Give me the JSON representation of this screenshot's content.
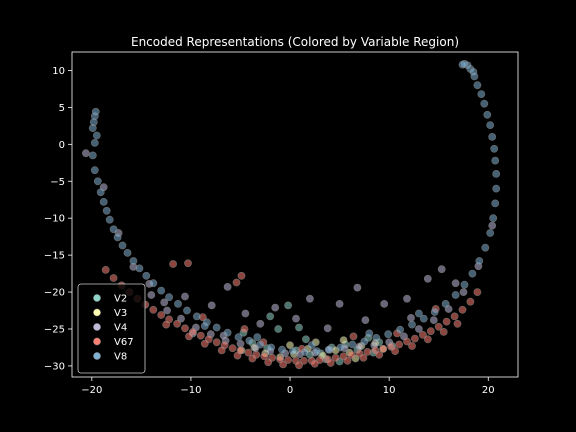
{
  "chart_data": {
    "type": "scatter",
    "title": "Encoded Representations (Colored by Variable Region)",
    "xlabel": "",
    "ylabel": "",
    "xlim": [
      -22,
      23
    ],
    "ylim": [
      -31.5,
      12.5
    ],
    "xticks": [
      -20,
      -10,
      0,
      10,
      20
    ],
    "yticks": [
      10,
      5,
      0,
      -5,
      -10,
      -15,
      -20,
      -25,
      -30
    ],
    "grid": false,
    "legend_position": "lower-left",
    "background": "#000000",
    "series": [
      {
        "name": "V2",
        "color": "#8dd3c7",
        "points": [
          [
            -2.3,
            -27.6
          ],
          [
            -1.2,
            -25.0
          ],
          [
            0.6,
            -27.9
          ],
          [
            2.0,
            -28.5
          ],
          [
            3.1,
            -28.3
          ],
          [
            4.2,
            -27.5
          ],
          [
            5.6,
            -27.1
          ],
          [
            6.8,
            -27.8
          ],
          [
            7.9,
            -26.2
          ],
          [
            9.0,
            -26.8
          ],
          [
            -0.2,
            -21.8
          ],
          [
            -2.0,
            -23.3
          ],
          [
            1.6,
            -26.4
          ],
          [
            3.6,
            -29.1
          ],
          [
            -3.8,
            -26.9
          ],
          [
            10.3,
            -27.3
          ],
          [
            0.9,
            -24.8
          ],
          [
            5.0,
            -29.4
          ],
          [
            -4.7,
            -25.5
          ],
          [
            8.4,
            -28.2
          ]
        ]
      },
      {
        "name": "V3",
        "color": "#ffffb3",
        "points": [
          [
            -2.5,
            -28.3
          ],
          [
            -1.0,
            -28.8
          ],
          [
            0.4,
            -28.4
          ],
          [
            1.8,
            -27.7
          ],
          [
            3.3,
            -28.6
          ],
          [
            4.6,
            -27.9
          ],
          [
            6.0,
            -28.2
          ],
          [
            7.2,
            -27.3
          ],
          [
            8.6,
            -26.9
          ],
          [
            -3.6,
            -27.5
          ],
          [
            2.6,
            -26.8
          ],
          [
            5.4,
            -26.5
          ],
          [
            9.4,
            -27.7
          ],
          [
            0.0,
            -27.2
          ],
          [
            -4.9,
            -27.9
          ],
          [
            6.6,
            -29.0
          ]
        ]
      },
      {
        "name": "V4",
        "color": "#bebada",
        "points": [
          [
            -20.6,
            -1.2
          ],
          [
            -18.8,
            -5.8
          ],
          [
            -17.3,
            -12.0
          ],
          [
            -15.8,
            -16.6
          ],
          [
            -14.0,
            -20.4
          ],
          [
            -12.4,
            -22.5
          ],
          [
            -11.0,
            -23.6
          ],
          [
            -9.5,
            -24.8
          ],
          [
            -8.0,
            -25.7
          ],
          [
            -6.5,
            -26.6
          ],
          [
            -5.0,
            -27.0
          ],
          [
            -3.5,
            -27.6
          ],
          [
            -2.0,
            -28.0
          ],
          [
            -0.5,
            -28.3
          ],
          [
            1.0,
            -28.4
          ],
          [
            2.5,
            -28.2
          ],
          [
            4.0,
            -27.8
          ],
          [
            5.5,
            -27.6
          ],
          [
            7.0,
            -27.4
          ],
          [
            8.5,
            -27.2
          ],
          [
            10.0,
            -26.8
          ],
          [
            11.5,
            -26.0
          ],
          [
            13.0,
            -25.0
          ],
          [
            14.5,
            -23.8
          ],
          [
            16.0,
            -22.3
          ],
          [
            17.5,
            -20.0
          ],
          [
            19.0,
            -16.5
          ],
          [
            20.4,
            -11.0
          ],
          [
            -6.3,
            -19.3
          ],
          [
            -7.9,
            -21.8
          ],
          [
            -12.7,
            -21.4
          ],
          [
            -4.5,
            -22.9
          ],
          [
            -10.6,
            -20.6
          ],
          [
            -1.5,
            -22.1
          ],
          [
            2.0,
            -20.9
          ],
          [
            5.0,
            -21.6
          ],
          [
            6.8,
            -19.4
          ],
          [
            9.5,
            -21.6
          ],
          [
            11.8,
            -20.9
          ],
          [
            13.9,
            -18.2
          ],
          [
            15.3,
            -16.9
          ],
          [
            16.7,
            -18.8
          ],
          [
            -9.8,
            -25.6
          ],
          [
            -6.7,
            -25.9
          ],
          [
            -3.0,
            -24.3
          ],
          [
            0.6,
            -23.6
          ],
          [
            3.8,
            -24.9
          ],
          [
            7.6,
            -23.8
          ],
          [
            12.2,
            -23.5
          ],
          [
            -14.2,
            -18.9
          ]
        ]
      },
      {
        "name": "V67",
        "color": "#fb8072",
        "points": [
          [
            -18.6,
            -17.0
          ],
          [
            -17.8,
            -18.1
          ],
          [
            -17.0,
            -19.1
          ],
          [
            -16.2,
            -20.0
          ],
          [
            -15.4,
            -20.9
          ],
          [
            -14.6,
            -21.7
          ],
          [
            -13.8,
            -22.4
          ],
          [
            -13.0,
            -23.1
          ],
          [
            -12.2,
            -23.7
          ],
          [
            -11.4,
            -24.3
          ],
          [
            -10.6,
            -24.9
          ],
          [
            -9.8,
            -25.4
          ],
          [
            -9.0,
            -25.9
          ],
          [
            -8.2,
            -26.4
          ],
          [
            -7.4,
            -26.8
          ],
          [
            -6.6,
            -27.2
          ],
          [
            -5.8,
            -27.6
          ],
          [
            -5.0,
            -27.9
          ],
          [
            -4.2,
            -28.2
          ],
          [
            -3.4,
            -28.5
          ],
          [
            -2.6,
            -28.7
          ],
          [
            -1.8,
            -28.9
          ],
          [
            -1.0,
            -29.1
          ],
          [
            -0.2,
            -29.2
          ],
          [
            0.6,
            -29.3
          ],
          [
            1.4,
            -29.3
          ],
          [
            2.2,
            -29.3
          ],
          [
            3.0,
            -29.2
          ],
          [
            3.8,
            -29.1
          ],
          [
            4.6,
            -28.9
          ],
          [
            5.4,
            -28.7
          ],
          [
            6.2,
            -28.5
          ],
          [
            7.0,
            -28.3
          ],
          [
            7.8,
            -28.1
          ],
          [
            8.6,
            -27.9
          ],
          [
            9.4,
            -27.7
          ],
          [
            10.2,
            -27.4
          ],
          [
            11.0,
            -27.1
          ],
          [
            11.8,
            -26.7
          ],
          [
            12.6,
            -26.3
          ],
          [
            13.4,
            -25.8
          ],
          [
            14.2,
            -25.3
          ],
          [
            15.0,
            -24.7
          ],
          [
            15.8,
            -24.0
          ],
          [
            16.6,
            -23.3
          ],
          [
            17.4,
            -22.4
          ],
          [
            18.2,
            -21.3
          ],
          [
            18.9,
            -20.0
          ],
          [
            -12.5,
            -24.4
          ],
          [
            -10.2,
            -26.0
          ],
          [
            -8.6,
            -27.0
          ],
          [
            -6.9,
            -27.9
          ],
          [
            -5.3,
            -28.6
          ],
          [
            -3.8,
            -29.0
          ],
          [
            -2.2,
            -29.5
          ],
          [
            -0.7,
            -29.8
          ],
          [
            0.9,
            -29.9
          ],
          [
            2.5,
            -29.7
          ],
          [
            4.1,
            -29.6
          ],
          [
            5.8,
            -29.3
          ],
          [
            7.4,
            -28.9
          ],
          [
            9.0,
            -28.5
          ],
          [
            10.6,
            -28.0
          ],
          [
            12.3,
            -27.3
          ],
          [
            13.9,
            -26.4
          ],
          [
            15.5,
            -25.4
          ],
          [
            16.9,
            -24.3
          ],
          [
            -11.8,
            -16.2
          ],
          [
            -10.3,
            -16.1
          ],
          [
            -4.9,
            -17.8
          ],
          [
            -5.4,
            -18.7
          ],
          [
            -4.6,
            -25.0
          ],
          [
            -8.8,
            -23.4
          ],
          [
            -2.7,
            -26.8
          ],
          [
            1.2,
            -27.7
          ],
          [
            6.4,
            -26.0
          ],
          [
            10.8,
            -25.6
          ],
          [
            14.7,
            -22.3
          ]
        ]
      },
      {
        "name": "V8",
        "color": "#80b1d3",
        "points": [
          [
            -19.9,
            2.2
          ],
          [
            -19.8,
            3.0
          ],
          [
            -19.7,
            3.8
          ],
          [
            -19.6,
            4.4
          ],
          [
            -19.5,
            1.2
          ],
          [
            -19.7,
            0.2
          ],
          [
            -19.9,
            -1.5
          ],
          [
            -19.7,
            -3.5
          ],
          [
            -19.4,
            -5.0
          ],
          [
            -19.1,
            -6.5
          ],
          [
            -18.8,
            -7.8
          ],
          [
            -18.5,
            -9.0
          ],
          [
            -18.2,
            -10.2
          ],
          [
            -17.8,
            -11.5
          ],
          [
            -17.4,
            -12.6
          ],
          [
            -16.9,
            -13.7
          ],
          [
            -16.4,
            -14.7
          ],
          [
            -15.8,
            -15.8
          ],
          [
            -15.2,
            -16.8
          ],
          [
            -14.5,
            -17.8
          ],
          [
            -13.8,
            -18.8
          ],
          [
            -13.0,
            -19.8
          ],
          [
            -12.2,
            -20.7
          ],
          [
            -11.3,
            -21.6
          ],
          [
            -10.4,
            -22.5
          ],
          [
            -9.4,
            -23.3
          ],
          [
            -8.4,
            -24.1
          ],
          [
            -7.4,
            -24.8
          ],
          [
            -6.3,
            -25.5
          ],
          [
            -5.2,
            -26.1
          ],
          [
            -4.1,
            -26.6
          ],
          [
            -3.0,
            -27.1
          ],
          [
            -1.9,
            -27.5
          ],
          [
            -0.8,
            -27.8
          ],
          [
            0.3,
            -28.0
          ],
          [
            1.5,
            -28.1
          ],
          [
            2.7,
            -28.0
          ],
          [
            3.9,
            -27.8
          ],
          [
            5.1,
            -27.5
          ],
          [
            6.3,
            -27.1
          ],
          [
            7.5,
            -26.7
          ],
          [
            8.7,
            -26.2
          ],
          [
            9.9,
            -25.7
          ],
          [
            11.1,
            -25.1
          ],
          [
            12.3,
            -24.4
          ],
          [
            13.5,
            -23.6
          ],
          [
            14.6,
            -22.7
          ],
          [
            15.7,
            -21.6
          ],
          [
            16.7,
            -20.4
          ],
          [
            17.6,
            -19.0
          ],
          [
            18.4,
            -17.5
          ],
          [
            19.1,
            -15.8
          ],
          [
            19.7,
            -14.0
          ],
          [
            20.2,
            -12.0
          ],
          [
            20.5,
            -10.0
          ],
          [
            20.7,
            -8.0
          ],
          [
            20.8,
            -6.0
          ],
          [
            20.8,
            -4.0
          ],
          [
            20.7,
            -2.2
          ],
          [
            20.6,
            -0.6
          ],
          [
            20.4,
            1.0
          ],
          [
            20.2,
            2.6
          ],
          [
            19.9,
            4.0
          ],
          [
            19.6,
            5.5
          ],
          [
            19.3,
            6.8
          ],
          [
            18.9,
            8.0
          ],
          [
            18.6,
            9.2
          ],
          [
            18.2,
            10.2
          ],
          [
            17.9,
            10.7
          ],
          [
            17.6,
            10.9
          ],
          [
            17.4,
            10.8
          ],
          [
            18.5,
            9.8
          ],
          [
            -8.6,
            -24.6
          ],
          [
            -3.3,
            -26.1
          ],
          [
            2.2,
            -27.2
          ],
          [
            8.0,
            -25.6
          ],
          [
            13.0,
            -22.9
          ]
        ]
      }
    ]
  }
}
